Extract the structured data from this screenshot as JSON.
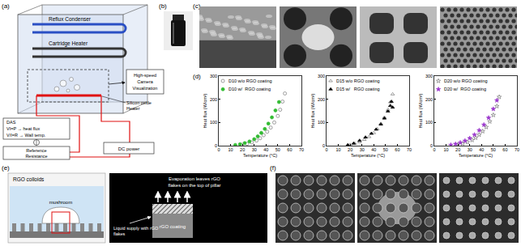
{
  "panels": {
    "a": {
      "label": "(a)",
      "reflux_condenser": "Reflux Condenser",
      "cartridge_heater": "Cartridge Heater",
      "camera": [
        "High-speed",
        "Camera",
        "Visualization"
      ],
      "das": [
        "DAS",
        "VI=P → heat flux",
        "V/I=R → Wall temp."
      ],
      "reference": [
        "Reference",
        "Resistance"
      ],
      "heater": [
        "Silicon oxide",
        "Heater"
      ],
      "dc_power": "DC power"
    },
    "b": {
      "label": "(b)"
    },
    "c": {
      "label": "(c)"
    },
    "d": {
      "label": "(d)"
    },
    "e": {
      "label": "(e)",
      "colloids": "RGO colloids",
      "mushroom": "mushroom",
      "evaporation": [
        "Evaporation leaves rGO",
        "flakes on the top of pillar"
      ],
      "coating": "rGO coating",
      "supply": [
        "Liquid supply with rGO",
        "flakes"
      ]
    },
    "f": {
      "label": "(f)"
    }
  },
  "chart_data": [
    {
      "type": "scatter",
      "xlabel": "Temperature (°C)",
      "ylabel": "Heat flux (W/cm²)",
      "xlim": [
        0,
        70
      ],
      "xticks": [
        0,
        10,
        20,
        30,
        40,
        50,
        60,
        70
      ],
      "ylim": [
        0,
        300
      ],
      "yticks": [
        0,
        100,
        200,
        300
      ],
      "grid": false,
      "legend": "upper left",
      "series": [
        {
          "name": "D10 w/o RGO coating",
          "color": "#777777",
          "marker": "circle-open",
          "x": [
            20,
            24,
            28,
            32,
            35,
            38,
            41,
            44,
            47,
            50,
            52,
            54,
            56
          ],
          "values": [
            4,
            8,
            14,
            22,
            32,
            45,
            60,
            78,
            100,
            128,
            155,
            190,
            225
          ]
        },
        {
          "name": "D10 w/  RGO coating",
          "color": "#33bb33",
          "marker": "circle",
          "x": [
            14,
            18,
            22,
            26,
            30,
            33,
            36,
            39,
            42,
            45,
            48,
            51
          ],
          "values": [
            3,
            6,
            11,
            18,
            28,
            40,
            55,
            72,
            95,
            122,
            152,
            188
          ]
        }
      ]
    },
    {
      "type": "scatter",
      "xlabel": "Temperature (°C)",
      "ylabel": "Heat flux (W/cm²)",
      "xlim": [
        0,
        70
      ],
      "xticks": [
        0,
        10,
        20,
        30,
        40,
        50,
        60,
        70
      ],
      "ylim": [
        0,
        300
      ],
      "yticks": [
        0,
        100,
        200,
        300
      ],
      "grid": false,
      "legend": "upper left",
      "series": [
        {
          "name": "D15 w/o RGO coating",
          "color": "#777777",
          "marker": "triangle-up-open",
          "x": [
            20,
            24,
            28,
            32,
            36,
            40,
            43,
            46,
            49,
            52,
            54,
            56
          ],
          "values": [
            4,
            9,
            16,
            26,
            38,
            55,
            72,
            95,
            122,
            155,
            188,
            222
          ]
        },
        {
          "name": "D15 w/   RGO coating",
          "color": "#000000",
          "marker": "triangle-up",
          "x": [
            18,
            23,
            28,
            33,
            38,
            42,
            46,
            49,
            52,
            54,
            55,
            56
          ],
          "values": [
            3,
            10,
            22,
            36,
            52,
            70,
            92,
            118,
            148,
            172,
            190,
            165
          ]
        }
      ]
    },
    {
      "type": "scatter",
      "xlabel": "Temperature (°C)",
      "ylabel": "Heat flux (W/cm²)",
      "xlim": [
        0,
        70
      ],
      "xticks": [
        0,
        10,
        20,
        30,
        40,
        50,
        60,
        70
      ],
      "ylim": [
        0,
        300
      ],
      "yticks": [
        0,
        100,
        200,
        300
      ],
      "grid": false,
      "legend": "upper left",
      "series": [
        {
          "name": "D20 w/o RGO coating",
          "color": "#777777",
          "marker": "star-open",
          "x": [
            20,
            24,
            28,
            32,
            35,
            38,
            41,
            44,
            47,
            50,
            53,
            55
          ],
          "values": [
            4,
            9,
            15,
            24,
            34,
            47,
            62,
            80,
            104,
            132,
            170,
            210
          ]
        },
        {
          "name": "D20 w/  RGO coating",
          "color": "#9933cc",
          "marker": "star",
          "x": [
            14,
            18,
            22,
            26,
            30,
            34,
            38,
            42,
            46,
            50,
            53
          ],
          "values": [
            3,
            7,
            13,
            21,
            32,
            47,
            66,
            90,
            120,
            158,
            195
          ]
        }
      ]
    }
  ]
}
